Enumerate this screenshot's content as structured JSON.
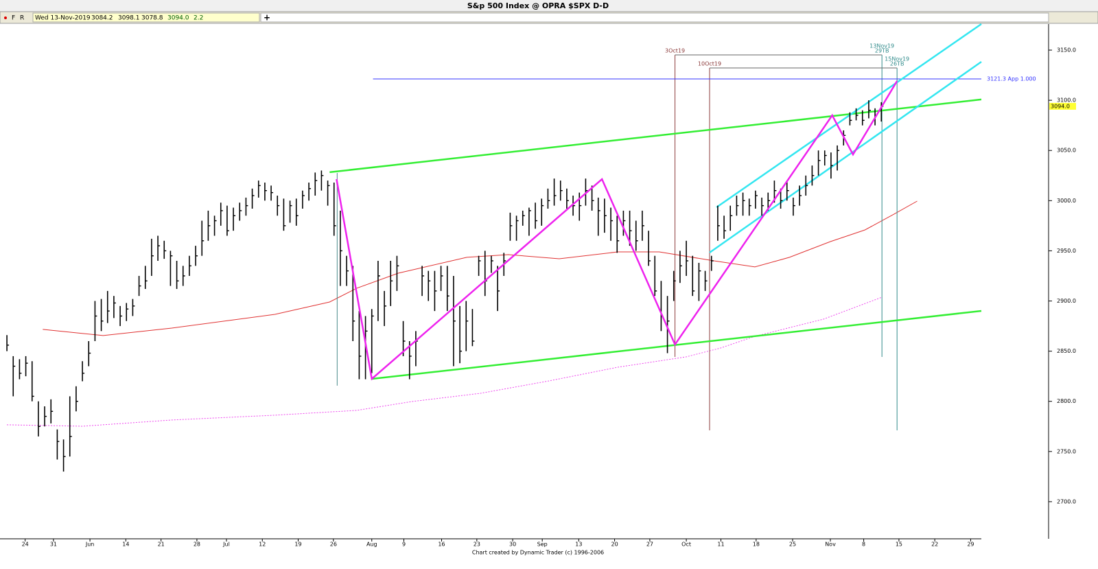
{
  "header": {
    "title": "S&p 500 Index @ OPRA $SPX   D-D"
  },
  "toolbar": {
    "f": "F",
    "r": "R",
    "date": "Wed 13-Nov-2019",
    "open": "3084.2",
    "high": "3098.1",
    "low": "3078.8",
    "close": "3094.0",
    "change": "2.2",
    "add": "+"
  },
  "footer": "Chart created by Dynamic Trader  (c) 1996-2006",
  "chart_data": {
    "type": "ohlc",
    "xlim": [
      -1.1,
      154.9
    ],
    "ylim": [
      2663,
      3176
    ],
    "yticks": [
      {
        "value": 3150,
        "label": "3150.0"
      },
      {
        "value": 3100,
        "label": "3100.0"
      },
      {
        "value": 3050,
        "label": "3050.0"
      },
      {
        "value": 3000,
        "label": "3000.0"
      },
      {
        "value": 2950,
        "label": "2950.0"
      },
      {
        "value": 2900,
        "label": "2900.0"
      },
      {
        "value": 2850,
        "label": "2850.0"
      },
      {
        "value": 2800,
        "label": "2800.0"
      },
      {
        "value": 2750,
        "label": "2750.0"
      },
      {
        "value": 2700,
        "label": "2700.0"
      }
    ],
    "xticks": [
      {
        "value": 2.9,
        "label": "24"
      },
      {
        "value": 7.4,
        "label": "31"
      },
      {
        "value": 13.2,
        "label": "Jun"
      },
      {
        "value": 18.9,
        "label": "14"
      },
      {
        "value": 24.5,
        "label": "21"
      },
      {
        "value": 30.2,
        "label": "28"
      },
      {
        "value": 34.9,
        "label": "Jul"
      },
      {
        "value": 40.6,
        "label": "12"
      },
      {
        "value": 46.3,
        "label": "19"
      },
      {
        "value": 51.9,
        "label": "26"
      },
      {
        "value": 58.0,
        "label": "Aug"
      },
      {
        "value": 63.1,
        "label": "9"
      },
      {
        "value": 69.1,
        "label": "16"
      },
      {
        "value": 74.7,
        "label": "23"
      },
      {
        "value": 80.4,
        "label": "30"
      },
      {
        "value": 85.1,
        "label": "Sep"
      },
      {
        "value": 90.9,
        "label": "13"
      },
      {
        "value": 96.6,
        "label": "20"
      },
      {
        "value": 102.2,
        "label": "27"
      },
      {
        "value": 108.0,
        "label": "Oct"
      },
      {
        "value": 113.5,
        "label": "11"
      },
      {
        "value": 119.1,
        "label": "18"
      },
      {
        "value": 124.9,
        "label": "25"
      },
      {
        "value": 130.9,
        "label": "Nov"
      },
      {
        "value": 136.2,
        "label": "8"
      },
      {
        "value": 141.8,
        "label": "15"
      },
      {
        "value": 147.5,
        "label": "22"
      },
      {
        "value": 153.2,
        "label": "29"
      }
    ],
    "series": [
      {
        "color": "#000000",
        "high": [
          2866,
          2845,
          2842,
          2845,
          2840,
          2800,
          2795,
          2802,
          2772,
          2762,
          2805,
          2815,
          2840,
          2860,
          2900,
          2902,
          2910,
          2905,
          2895,
          2898,
          2902,
          2925,
          2935,
          2962,
          2965,
          2960,
          2950,
          2940,
          2935,
          2945,
          2955,
          2980,
          2990,
          2985,
          2998,
          2995,
          2993,
          2998,
          3003,
          3012,
          3020,
          3018,
          3015,
          3005,
          3002,
          3000,
          3002,
          3010,
          3018,
          3028,
          3030,
          3020,
          3018,
          2990,
          2945,
          2935,
          2890,
          2885,
          2892,
          2940,
          2910,
          2940,
          2945,
          2880,
          2860,
          2870,
          2935,
          2930,
          2930,
          2935,
          2935,
          2925,
          2895,
          2900,
          2892,
          2945,
          2950,
          2945,
          2935,
          2948,
          2988,
          2985,
          2990,
          2993,
          2998,
          3002,
          3012,
          3022,
          3020,
          3012,
          3005,
          3008,
          3022,
          3015,
          3003,
          3002,
          2993,
          2985,
          2990,
          2990,
          2980,
          2990,
          2970,
          2945,
          2920,
          2905,
          2930,
          2950,
          2960,
          2945,
          2938,
          2930,
          2945,
          2995,
          2985,
          2995,
          3005,
          3008,
          3002,
          3010,
          3003,
          3008,
          3020,
          3012,
          3020,
          3003,
          3015,
          3025,
          3035,
          3050,
          3050,
          3048,
          3055,
          3070,
          3088,
          3092,
          3090,
          3100,
          3092,
          3098.1
        ],
        "low": [
          2850,
          2805,
          2822,
          2825,
          2800,
          2765,
          2775,
          2778,
          2742,
          2730,
          2745,
          2790,
          2820,
          2835,
          2860,
          2870,
          2878,
          2883,
          2875,
          2880,
          2885,
          2905,
          2912,
          2925,
          2940,
          2942,
          2915,
          2912,
          2915,
          2925,
          2935,
          2945,
          2960,
          2965,
          2975,
          2965,
          2970,
          2980,
          2985,
          2992,
          3003,
          3000,
          3000,
          2985,
          2970,
          2978,
          2975,
          2992,
          3000,
          3005,
          3010,
          2995,
          2965,
          2915,
          2915,
          2860,
          2822,
          2822,
          2828,
          2880,
          2875,
          2895,
          2910,
          2845,
          2822,
          2835,
          2905,
          2900,
          2890,
          2910,
          2890,
          2835,
          2838,
          2850,
          2855,
          2925,
          2905,
          2928,
          2890,
          2925,
          2960,
          2960,
          2975,
          2965,
          2972,
          2975,
          2992,
          2995,
          3000,
          2992,
          2985,
          2980,
          2995,
          2990,
          2965,
          2968,
          2960,
          2948,
          2965,
          2955,
          2950,
          2960,
          2935,
          2905,
          2870,
          2848,
          2900,
          2918,
          2925,
          2905,
          2900,
          2910,
          2930,
          2960,
          2962,
          2970,
          2985,
          2985,
          2985,
          2992,
          2985,
          2990,
          2998,
          2992,
          3000,
          2985,
          2995,
          3005,
          3015,
          3025,
          3035,
          3022,
          3030,
          3055,
          3075,
          3080,
          3075,
          3082,
          3075,
          3078.8
        ],
        "close": [
          2856,
          2835,
          2828,
          2838,
          2805,
          2775,
          2785,
          2790,
          2760,
          2745,
          2765,
          2800,
          2828,
          2848,
          2885,
          2880,
          2890,
          2898,
          2885,
          2892,
          2895,
          2915,
          2920,
          2945,
          2955,
          2950,
          2945,
          2920,
          2925,
          2935,
          2945,
          2960,
          2975,
          2980,
          2990,
          2970,
          2985,
          2990,
          2995,
          3005,
          3015,
          3010,
          3008,
          2995,
          2975,
          2995,
          2985,
          3005,
          3012,
          3020,
          3025,
          3015,
          2975,
          2950,
          2930,
          2880,
          2845,
          2870,
          2885,
          2925,
          2895,
          2920,
          2935,
          2860,
          2845,
          2860,
          2925,
          2920,
          2910,
          2925,
          2905,
          2880,
          2850,
          2880,
          2860,
          2940,
          2920,
          2940,
          2910,
          2940,
          2975,
          2980,
          2985,
          2990,
          2980,
          2995,
          3000,
          3005,
          3010,
          3000,
          2995,
          2995,
          3010,
          3000,
          2990,
          2985,
          2980,
          2960,
          2980,
          2970,
          2960,
          2975,
          2940,
          2910,
          2885,
          2880,
          2920,
          2935,
          2940,
          2910,
          2930,
          2920,
          2940,
          2975,
          2970,
          2985,
          2995,
          3000,
          2995,
          3005,
          2995,
          3000,
          3010,
          3000,
          3010,
          2995,
          3005,
          3015,
          3025,
          3040,
          3045,
          3035,
          3050,
          3065,
          3080,
          3085,
          3080,
          3090,
          3085,
          3094
        ]
      }
    ],
    "moving_averages": [
      {
        "color": "#e03030",
        "dashed": false,
        "x": [
          5.7,
          15.3,
          26.2,
          42.6,
          51.3,
          55.6,
          62.2,
          73.1,
          79.7,
          87.8,
          97.1,
          103.7,
          112.4,
          118.9,
          124.4,
          130.9,
          136.4,
          140.8,
          144.7
        ],
        "values": [
          2871.7,
          2865.5,
          2873,
          2886.7,
          2899,
          2912.7,
          2927.7,
          2943.5,
          2946.2,
          2942.1,
          2948.9,
          2948.9,
          2940,
          2933.9,
          2943.5,
          2959.2,
          2970.8,
          2985.8,
          2999.5
        ]
      },
      {
        "color": "#ee44ee",
        "dashed": true,
        "x": [
          0,
          12.0,
          26.2,
          42.6,
          55.6,
          64.4,
          75.3,
          86.2,
          97.1,
          108.0,
          113.5,
          118.9,
          129.8,
          139.1
        ],
        "values": [
          2776.6,
          2775.2,
          2781.4,
          2786.2,
          2791,
          2799.8,
          2808,
          2820.4,
          2834.0,
          2844.3,
          2853.2,
          2864.8,
          2881.9,
          2903.8
        ]
      }
    ],
    "zigzag": {
      "color": "#ee22ee",
      "x": [
        52.4,
        58.0,
        94.6,
        106.2,
        131.2,
        134.5,
        141.5
      ],
      "values": [
        3021.4,
        2822.4,
        3021.4,
        2856.6,
        3085,
        3046,
        3119.2
      ]
    },
    "trendlines": [
      {
        "color": "#33ee33",
        "x": [
          51.3,
          154.9
        ],
        "values": [
          3028.3,
          3100.8
        ]
      },
      {
        "color": "#33ee33",
        "x": [
          58.0,
          154.9
        ],
        "values": [
          2822.4,
          2890.1
        ]
      },
      {
        "color": "#33e6f0",
        "x": [
          112.8,
          154.9
        ],
        "values": [
          2993.4,
          3176
        ]
      },
      {
        "color": "#33e6f0",
        "x": [
          111.7,
          154.9
        ],
        "values": [
          2948.2,
          3138.4
        ]
      }
    ],
    "time_lines": [
      {
        "color": "#4a8a8a",
        "x": 52.5,
        "values": [
          3027.6,
          2815.6
        ],
        "labels": []
      },
      {
        "color": "#8b3a3a",
        "x": 106.2,
        "values": [
          3145.2,
          2844.3
        ],
        "labels": [
          "3Oct19"
        ]
      },
      {
        "color": "#8b3a3a",
        "x": 111.7,
        "values": [
          3132.2,
          2771.1
        ],
        "labels": [
          "10Oct19"
        ]
      },
      {
        "color": "#2f8a8a",
        "x": 139.1,
        "values": [
          3145.2,
          2844.3
        ],
        "labels": [
          "13Nov19",
          "29TB"
        ]
      },
      {
        "color": "#2f8a8a",
        "x": 141.5,
        "values": [
          3132.2,
          2771.1
        ],
        "labels": [
          "15Nov19",
          "26TB"
        ]
      }
    ],
    "brackets": [
      {
        "color": "#666666",
        "x": [
          106.2,
          139.1
        ],
        "value": 3145.2
      },
      {
        "color": "#666666",
        "x": [
          111.7,
          141.5
        ],
        "value": 3132.2
      }
    ],
    "price_level": {
      "color": "#3333ff",
      "value": 3121.3,
      "x": [
        58.2,
        154.9
      ],
      "label": "3121.3 App 1.000"
    },
    "last_price": {
      "value": 3094,
      "label": "3094.0",
      "color": "#ffff33"
    }
  }
}
